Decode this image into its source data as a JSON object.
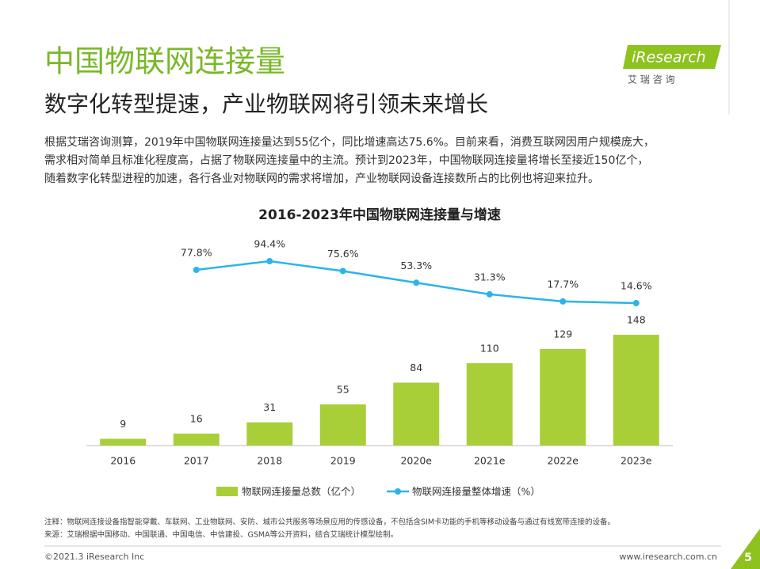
{
  "header": {
    "title": "中国物联网连接量",
    "subtitle": "数字化转型提速，产业物联网将引领未来增长",
    "logo": "iResearch",
    "logo_sub": "艾 瑞 咨 询"
  },
  "body": [
    "根据艾瑞咨询测算，2019年中国物联网连接量达到55亿个，同比增速高达75.6%。目前来看，消费互联网因用户规模庞大，",
    "需求相对简单且标准化程度高，占据了物联网连接量中的主流。预计到2023年，中国物联网连接量将增长至接近150亿个，",
    "随着数字化转型进程的加速，各行各业对物联网的需求将增加，产业物联网设备连接数所占的比例也将迎来拉升。"
  ],
  "chart_data": {
    "type": "bar_line",
    "title": "2016-2023年中国物联网连接量与增速",
    "categories": [
      "2016",
      "2017",
      "2018",
      "2019",
      "2020e",
      "2021e",
      "2022e",
      "2023e"
    ],
    "series": [
      {
        "name": "物联网连接量总数（亿个）",
        "type": "bar",
        "color": "#a8cf38",
        "values": [
          9,
          16,
          31,
          55,
          84,
          110,
          129,
          148
        ]
      },
      {
        "name": "物联网连接量整体增速（%）",
        "type": "line",
        "color": "#2bb5e6",
        "values": [
          null,
          77.8,
          94.4,
          75.6,
          53.3,
          31.3,
          17.7,
          14.6
        ],
        "value_labels": [
          null,
          "77.8%",
          "94.4%",
          "75.6%",
          "53.3%",
          "31.3%",
          "17.7%",
          "14.6%"
        ]
      }
    ]
  },
  "notes": [
    "注释：物联网连接设备指智能穿戴、车联网、工业物联网、安防、城市公共服务等场景应用的传感设备，不包括含SIM卡功能的手机等移动设备与通过有线宽带连接的设备。",
    "来源：艾瑞根据中国移动、中国联通、中国电信、中信建投、GSMA等公开资料，结合艾瑞统计模型绘制。"
  ],
  "footer": {
    "copyright": "©2021.3 iResearch Inc",
    "site": "www.iresearch.com.cn",
    "page": "5"
  }
}
